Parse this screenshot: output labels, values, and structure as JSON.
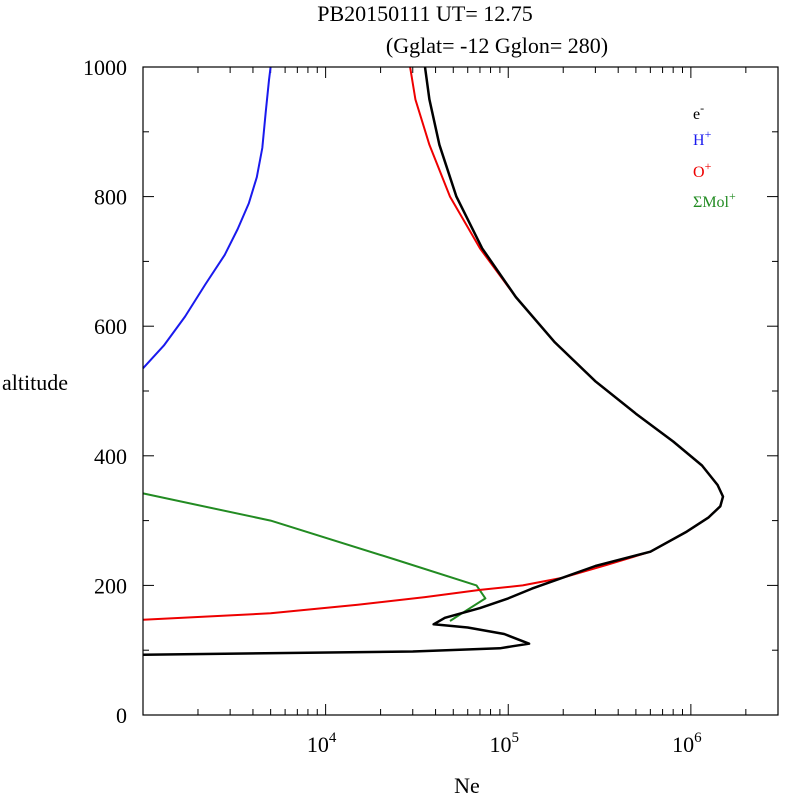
{
  "title": {
    "line1": "PB20150111   UT=  12.75",
    "line2": "(Gglat= -12   Gglon=  280)"
  },
  "chart_data": {
    "type": "line",
    "title": "PB20150111   UT=  12.75  (Gglat= -12   Gglon=  280)",
    "xlabel": "Ne",
    "ylabel": "altitude",
    "xscale": "log",
    "xlim": [
      1000,
      3000000
    ],
    "ylim": [
      0,
      1000
    ],
    "xticks": [
      {
        "value": 10000,
        "base": "10",
        "exp": "4"
      },
      {
        "value": 100000,
        "base": "10",
        "exp": "5"
      },
      {
        "value": 1000000,
        "base": "10",
        "exp": "6"
      }
    ],
    "yticks": [
      {
        "value": 0,
        "label": "0"
      },
      {
        "value": 200,
        "label": "200"
      },
      {
        "value": 400,
        "label": "400"
      },
      {
        "value": 600,
        "label": "600"
      },
      {
        "value": 800,
        "label": "800"
      },
      {
        "value": 1000,
        "label": "1000"
      }
    ],
    "legend_position": "top-right",
    "series": [
      {
        "name": "H+",
        "label": "H",
        "sup": "+",
        "color": "#1a1aee",
        "width": 2,
        "points": [
          [
            1000,
            535
          ],
          [
            1300,
            570
          ],
          [
            1700,
            615
          ],
          [
            2200,
            665
          ],
          [
            2800,
            710
          ],
          [
            3300,
            750
          ],
          [
            3800,
            790
          ],
          [
            4200,
            830
          ],
          [
            4500,
            875
          ],
          [
            4700,
            930
          ],
          [
            4900,
            980
          ],
          [
            5000,
            1000
          ]
        ]
      },
      {
        "name": "O+",
        "label": "O",
        "sup": "+",
        "color": "#ee0000",
        "width": 2,
        "points": [
          [
            1000,
            147
          ],
          [
            5000,
            157
          ],
          [
            15000,
            170
          ],
          [
            35000,
            182
          ],
          [
            70000,
            193
          ],
          [
            120000,
            200
          ],
          [
            200000,
            212
          ],
          [
            350000,
            232
          ],
          [
            600000,
            252
          ],
          [
            950000,
            283
          ],
          [
            1250000,
            305
          ],
          [
            1450000,
            322
          ],
          [
            1500000,
            337
          ],
          [
            1400000,
            355
          ],
          [
            1150000,
            385
          ],
          [
            800000,
            422
          ],
          [
            500000,
            465
          ],
          [
            300000,
            515
          ],
          [
            180000,
            575
          ],
          [
            110000,
            645
          ],
          [
            70000,
            720
          ],
          [
            48000,
            800
          ],
          [
            37000,
            880
          ],
          [
            31000,
            950
          ],
          [
            29000,
            1000
          ]
        ]
      },
      {
        "name": "ΣMol+",
        "label": "ΣMol",
        "sup": "+",
        "color": "#228b22",
        "width": 2,
        "points": [
          [
            1000,
            342
          ],
          [
            5000,
            300
          ],
          [
            24000,
            240
          ],
          [
            67000,
            200
          ],
          [
            75000,
            180
          ],
          [
            58000,
            160
          ],
          [
            48000,
            145
          ]
        ]
      },
      {
        "name": "e-",
        "label": "e",
        "sup": "-",
        "color": "#000000",
        "width": 2.5,
        "points": [
          [
            1000,
            93
          ],
          [
            30000,
            98
          ],
          [
            90000,
            103
          ],
          [
            105000,
            106
          ],
          [
            130000,
            110
          ],
          [
            95000,
            125
          ],
          [
            60000,
            135
          ],
          [
            39000,
            140
          ],
          [
            45000,
            150
          ],
          [
            70000,
            165
          ],
          [
            100000,
            180
          ],
          [
            135000,
            195
          ],
          [
            190000,
            210
          ],
          [
            300000,
            230
          ],
          [
            600000,
            252
          ],
          [
            950000,
            283
          ],
          [
            1250000,
            305
          ],
          [
            1450000,
            322
          ],
          [
            1500000,
            337
          ],
          [
            1400000,
            355
          ],
          [
            1150000,
            385
          ],
          [
            800000,
            422
          ],
          [
            500000,
            465
          ],
          [
            300000,
            515
          ],
          [
            180000,
            575
          ],
          [
            110000,
            645
          ],
          [
            72000,
            720
          ],
          [
            52000,
            800
          ],
          [
            42000,
            880
          ],
          [
            37000,
            950
          ],
          [
            35000,
            1000
          ]
        ]
      }
    ]
  }
}
